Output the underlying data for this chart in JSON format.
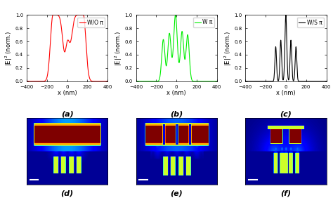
{
  "subplots_top": [
    {
      "label": "W/O π",
      "color": "red",
      "ylabel": "|E|$^2$ (norm.)",
      "xlabel": "x (nm)",
      "sublabel": "(a)",
      "xlim": [
        -400,
        400
      ],
      "ylim": [
        0,
        1.0
      ],
      "yticks": [
        0,
        0.2,
        0.4,
        0.6,
        0.8,
        1.0
      ],
      "xticks": [
        -400,
        -200,
        0,
        200,
        400
      ]
    },
    {
      "label": "W π",
      "color": "#00ee00",
      "ylabel": "|E|$^2$ (norm.)",
      "xlabel": "x (nm)",
      "sublabel": "(b)",
      "xlim": [
        -400,
        400
      ],
      "ylim": [
        0,
        1.0
      ],
      "yticks": [
        0,
        0.2,
        0.4,
        0.6,
        0.8,
        1.0
      ],
      "xticks": [
        -400,
        -200,
        0,
        200,
        400
      ]
    },
    {
      "label": "W/S π",
      "color": "black",
      "ylabel": "|E|$^2$ (norm.)",
      "xlabel": "x (nm)",
      "sublabel": "(c)",
      "xlim": [
        -400,
        400
      ],
      "ylim": [
        0,
        1.0
      ],
      "yticks": [
        0,
        0.2,
        0.4,
        0.6,
        0.8,
        1.0
      ],
      "xticks": [
        -400,
        -200,
        0,
        200,
        400
      ]
    }
  ],
  "bottom_labels": [
    "(d)",
    "(e)",
    "(f)"
  ],
  "axis_fontsize": 6,
  "tick_fontsize": 5,
  "legend_fontsize": 5.5
}
